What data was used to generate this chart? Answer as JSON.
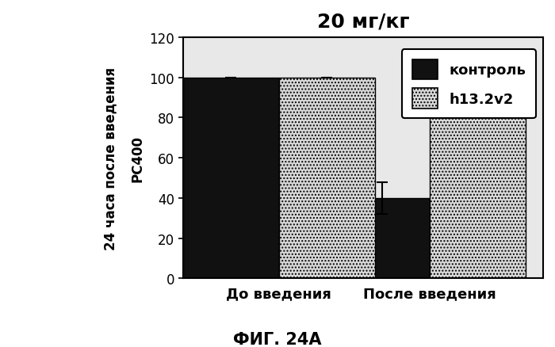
{
  "title": "20 мг/кг",
  "ylabel_inner": "РС400",
  "ylabel_outer": "24 часа после введения",
  "xlabel": "ФИГ. 24А",
  "categories": [
    "До введения",
    "После введения"
  ],
  "bar1_label": "контроль",
  "bar2_label": "h13.2v2",
  "bar1_values": [
    100,
    40
  ],
  "bar2_values": [
    100,
    95
  ],
  "bar1_errors": [
    0,
    8
  ],
  "bar2_errors": [
    0,
    8
  ],
  "ylim": [
    0,
    120
  ],
  "yticks": [
    0,
    20,
    40,
    60,
    80,
    100,
    120
  ],
  "bar_width": 0.28,
  "group_positions": [
    0.28,
    0.72
  ],
  "xlim": [
    0.0,
    1.05
  ],
  "bar1_color": "#111111",
  "bar2_color": "#d8d8d8",
  "figsize": [
    7.0,
    4.39
  ],
  "dpi": 100,
  "title_fontsize": 18,
  "tick_fontsize": 12,
  "cat_label_fontsize": 13,
  "ylabel_fontsize": 12,
  "legend_fontsize": 13,
  "xlabel_fontsize": 15,
  "bg_color": "#e8e8e8"
}
